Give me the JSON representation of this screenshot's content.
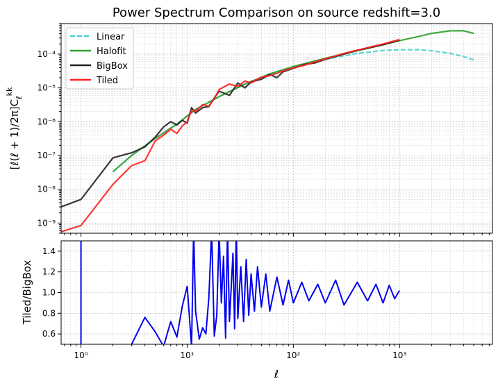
{
  "chart_data": [
    {
      "type": "line",
      "title": "Power Spectrum Comparison on source redshift=3.0",
      "xlabel": "",
      "ylabel": "[ℓ(ℓ + 1)/2π]C_ℓ^{kk}",
      "xscale": "log",
      "yscale": "log",
      "xlim": [
        0.65,
        7500
      ],
      "ylim": [
        5e-10,
        0.0008
      ],
      "grid": true,
      "legend": "top-left",
      "x_tick_labels": [],
      "y_tick_labels": [
        "10⁻⁹",
        "10⁻⁸",
        "10⁻⁷",
        "10⁻⁶",
        "10⁻⁵",
        "10⁻⁴"
      ],
      "y_tick_values": [
        1e-09,
        1e-08,
        1e-07,
        1e-06,
        1e-05,
        0.0001
      ],
      "series": [
        {
          "name": "Linear",
          "color": "#48d1cc",
          "style": "dashed",
          "x": [
            2,
            3,
            5,
            8,
            12,
            20,
            35,
            60,
            100,
            200,
            400,
            700,
            1000,
            1500,
            2000,
            3000,
            4000,
            5000
          ],
          "y": [
            3.3e-08,
            1e-07,
            3.2e-07,
            8.5e-07,
            2.3e-06,
            5.5e-06,
            1.3e-05,
            2.6e-05,
            4.2e-05,
            7e-05,
            0.000105,
            0.000128,
            0.000135,
            0.000135,
            0.000125,
            0.000105,
            8.5e-05,
            6.8e-05
          ]
        },
        {
          "name": "Halofit",
          "color": "#2ca02c",
          "style": "solid",
          "x": [
            2,
            3,
            5,
            8,
            12,
            20,
            35,
            60,
            100,
            200,
            400,
            700,
            1000,
            1500,
            2000,
            3000,
            4000,
            5000
          ],
          "y": [
            3.3e-08,
            1e-07,
            3.2e-07,
            8.5e-07,
            2.3e-06,
            5.5e-06,
            1.3e-05,
            2.6e-05,
            4.3e-05,
            7.5e-05,
            0.000125,
            0.00019,
            0.00025,
            0.00033,
            0.00041,
            0.00049,
            0.00049,
            0.00041
          ]
        },
        {
          "name": "BigBox",
          "color": "#222222",
          "style": "solid",
          "x": [
            0.65,
            1,
            2,
            3,
            4,
            5,
            6,
            7,
            8,
            9,
            10,
            11,
            12,
            14,
            16,
            18,
            20,
            25,
            30,
            35,
            40,
            50,
            60,
            70,
            80,
            100,
            130,
            160,
            200,
            300,
            400,
            500,
            700,
            1000
          ],
          "y": [
            3e-09,
            5e-09,
            8.5e-08,
            1.2e-07,
            1.8e-07,
            3.5e-07,
            7e-07,
            1e-06,
            8e-07,
            1.1e-06,
            9e-07,
            2.6e-06,
            1.8e-06,
            2.6e-06,
            2.8e-06,
            5e-06,
            8e-06,
            6e-06,
            1.4e-05,
            1e-05,
            1.5e-05,
            1.8e-05,
            2.5e-05,
            2e-05,
            3e-05,
            3.8e-05,
            5e-05,
            5.5e-05,
            7e-05,
            0.0001,
            0.00013,
            0.00015,
            0.00019,
            0.00026
          ]
        },
        {
          "name": "Tiled",
          "color": "#ff2020",
          "style": "solid",
          "x": [
            0.65,
            1,
            2,
            3,
            4,
            5,
            6,
            7,
            8,
            9,
            10,
            11,
            12,
            14,
            16,
            18,
            20,
            25,
            30,
            35,
            40,
            50,
            60,
            70,
            80,
            100,
            130,
            160,
            200,
            300,
            400,
            500,
            700,
            1000
          ],
          "y": [
            5.5e-10,
            8.5e-10,
            1.4e-08,
            5e-08,
            7e-08,
            2.7e-07,
            4e-07,
            6e-07,
            4.5e-07,
            7.5e-07,
            1e-06,
            2.2e-06,
            2e-06,
            3.2e-06,
            2.9e-06,
            4.8e-06,
            9e-06,
            1.3e-05,
            1.1e-05,
            1.6e-05,
            1.4e-05,
            2.1e-05,
            2.3e-05,
            2.7e-05,
            3.2e-05,
            3.9e-05,
            4.8e-05,
            5.9e-05,
            7.2e-05,
            0.000105,
            0.00013,
            0.000155,
            0.0002,
            0.00027
          ]
        }
      ]
    },
    {
      "type": "line",
      "title": "",
      "xlabel": "ℓ",
      "ylabel": "Tiled/BigBox",
      "xscale": "log",
      "xlim": [
        0.65,
        7500
      ],
      "ylim": [
        0.5,
        1.5
      ],
      "grid": true,
      "x_tick_labels": [
        "10⁰",
        "10¹",
        "10²",
        "10³"
      ],
      "x_tick_values": [
        1,
        10,
        100,
        1000
      ],
      "y_tick_labels": [
        "0.6",
        "0.8",
        "1.0",
        "1.2",
        "1.4"
      ],
      "y_tick_values": [
        0.6,
        0.8,
        1.0,
        1.2,
        1.4
      ],
      "series": [
        {
          "name": "",
          "color": "#0000ee",
          "x": [
            1,
            1,
            3,
            4,
            5,
            6,
            7,
            8,
            9,
            10,
            11,
            11.5,
            12,
            13,
            14,
            15,
            16,
            17,
            18,
            19,
            20,
            21,
            22,
            23,
            24,
            25,
            26,
            27,
            28,
            29,
            30,
            32,
            34,
            36,
            38,
            40,
            43,
            46,
            50,
            55,
            60,
            70,
            80,
            90,
            100,
            120,
            140,
            170,
            200,
            250,
            300,
            400,
            500,
            600,
            700,
            800,
            900,
            1000
          ],
          "y": [
            1.6,
            0.0,
            0.5,
            0.76,
            0.62,
            0.48,
            0.72,
            0.57,
            0.87,
            1.06,
            0.48,
            1.6,
            0.82,
            0.55,
            0.66,
            0.6,
            0.95,
            1.6,
            0.58,
            0.78,
            1.6,
            0.9,
            1.35,
            0.56,
            1.6,
            0.72,
            1.05,
            1.38,
            0.65,
            1.6,
            0.75,
            1.25,
            0.72,
            1.32,
            0.78,
            1.18,
            0.82,
            1.25,
            0.86,
            1.18,
            0.82,
            1.15,
            0.88,
            1.12,
            0.9,
            1.1,
            0.92,
            1.08,
            0.9,
            1.12,
            0.88,
            1.1,
            0.92,
            1.08,
            0.9,
            1.07,
            0.94,
            1.02
          ]
        }
      ]
    }
  ]
}
